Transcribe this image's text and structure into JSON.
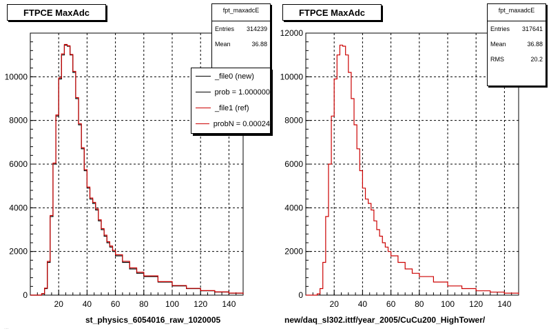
{
  "chart_data": [
    {
      "type": "line",
      "title": "FTPCE MaxAdc",
      "xlabel": "st_physics_6054016_raw_1020005",
      "ylabel": "",
      "xlim": [
        0,
        150
      ],
      "ylim": [
        0,
        12000
      ],
      "xticks": [
        20,
        40,
        60,
        80,
        100,
        120,
        140
      ],
      "yticks": [
        0,
        2000,
        4000,
        6000,
        8000,
        10000
      ],
      "grid": true,
      "stats": {
        "name": "fpt_maxadcE",
        "entries_label": "Entries",
        "entries": "314239",
        "mean_label": "Mean",
        "mean": "36.88"
      },
      "legend": {
        "position": "top-right",
        "entries": [
          "_file0 (new)",
          "prob = 1.000000",
          "_file1 (ref)",
          "probN = 0.00024"
        ],
        "colors": [
          "#000000",
          "#000000",
          "#cc0000",
          "#cc0000"
        ]
      },
      "series": [
        {
          "name": "_file0 (new)",
          "color": "#000000",
          "x": [
            0,
            5,
            8,
            10,
            12,
            14,
            16,
            18,
            20,
            22,
            24,
            26,
            28,
            30,
            32,
            34,
            36,
            38,
            40,
            42,
            44,
            46,
            48,
            50,
            52,
            54,
            56,
            58,
            60,
            65,
            70,
            75,
            80,
            90,
            100,
            110,
            120,
            130,
            140,
            150
          ],
          "y": [
            0,
            0,
            60,
            300,
            1500,
            3600,
            6000,
            8200,
            9900,
            11000,
            11450,
            11400,
            11000,
            10200,
            9000,
            7800,
            6700,
            5700,
            4900,
            4400,
            4200,
            3900,
            3400,
            3000,
            2700,
            2400,
            2200,
            2000,
            1800,
            1500,
            1200,
            1000,
            850,
            600,
            420,
            300,
            200,
            140,
            90,
            50
          ]
        },
        {
          "name": "_file1 (ref)",
          "color": "#cc0000",
          "x": [
            0,
            5,
            8,
            10,
            12,
            14,
            16,
            18,
            20,
            22,
            24,
            26,
            28,
            30,
            32,
            34,
            36,
            38,
            40,
            42,
            44,
            46,
            48,
            50,
            52,
            54,
            56,
            58,
            60,
            65,
            70,
            75,
            80,
            90,
            100,
            110,
            120,
            130,
            140,
            150
          ],
          "y": [
            0,
            0,
            70,
            320,
            1550,
            3650,
            6050,
            8250,
            9950,
            11050,
            11480,
            11420,
            11020,
            10250,
            9050,
            7850,
            6750,
            5750,
            4950,
            4450,
            4250,
            3950,
            3450,
            3050,
            2750,
            2450,
            2250,
            2050,
            1850,
            1550,
            1250,
            1050,
            880,
            620,
            440,
            310,
            210,
            150,
            95,
            55
          ]
        }
      ]
    },
    {
      "type": "line",
      "title": "FTPCE MaxAdc",
      "xlabel": "new/daq_sl302.ittf/year_2005/CuCu200_HighTower/",
      "ylabel": "",
      "xlim": [
        0,
        150
      ],
      "ylim": [
        0,
        12000
      ],
      "xticks": [
        20,
        40,
        60,
        80,
        100,
        120,
        140
      ],
      "yticks": [
        0,
        2000,
        4000,
        6000,
        8000,
        10000,
        12000
      ],
      "grid": true,
      "stats": {
        "name": "fpt_maxadcE",
        "entries_label": "Entries",
        "entries": "317641",
        "mean_label": "Mean",
        "mean": "36.88",
        "rms_label": "RMS",
        "rms": "20.2"
      },
      "series": [
        {
          "color": "#cc0000",
          "x": [
            0,
            5,
            8,
            10,
            12,
            14,
            16,
            18,
            20,
            22,
            24,
            26,
            28,
            30,
            32,
            34,
            36,
            38,
            40,
            42,
            44,
            46,
            48,
            50,
            52,
            54,
            56,
            58,
            60,
            65,
            70,
            75,
            80,
            90,
            100,
            110,
            120,
            130,
            140,
            150
          ],
          "y": [
            0,
            0,
            60,
            300,
            1500,
            3600,
            6000,
            8200,
            9900,
            11000,
            11450,
            11400,
            11000,
            10200,
            9000,
            7800,
            6700,
            5700,
            4900,
            4400,
            4200,
            3900,
            3400,
            3000,
            2700,
            2400,
            2200,
            2000,
            1800,
            1500,
            1200,
            1000,
            850,
            600,
            420,
            300,
            200,
            140,
            90,
            50
          ]
        }
      ]
    }
  ],
  "footer_faded": "..."
}
